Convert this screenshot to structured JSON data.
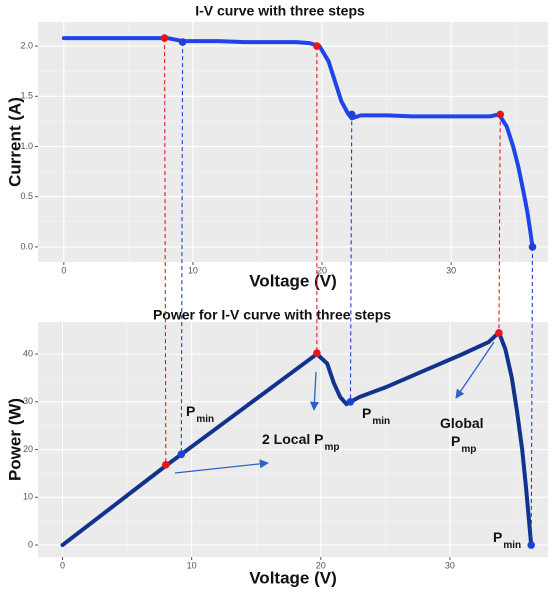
{
  "chart_data": [
    {
      "type": "line",
      "title": "I-V curve with three steps",
      "x_label": "Voltage (V)",
      "y_label": "Current (A)",
      "xlim": [
        -2.0,
        37.5
      ],
      "ylim": [
        -0.15,
        2.24
      ],
      "xticks": [
        0,
        10,
        20,
        30
      ],
      "yticks": [
        {
          "value": 0,
          "label": "0.0"
        },
        {
          "value": 0.5,
          "label": "0.5"
        },
        {
          "value": 1,
          "label": "1.0"
        },
        {
          "value": 1.5,
          "label": "1.5"
        },
        {
          "value": 2,
          "label": "2.0"
        }
      ],
      "grid": true,
      "series": [
        {
          "color": "#1f45e8",
          "x": [
            0,
            2,
            4,
            6,
            8,
            9.2,
            10,
            12,
            14,
            16,
            18,
            19,
            19.8,
            20.5,
            21,
            21.5,
            22,
            22.3,
            23,
            25,
            27,
            29,
            31,
            33,
            33.7,
            34.3,
            34.8,
            35.2,
            35.6,
            35.9,
            36.1,
            36.3
          ],
          "values": [
            2.08,
            2.08,
            2.08,
            2.08,
            2.08,
            2.05,
            2.05,
            2.05,
            2.04,
            2.04,
            2.04,
            2.03,
            2.0,
            1.85,
            1.65,
            1.45,
            1.33,
            1.28,
            1.31,
            1.31,
            1.3,
            1.3,
            1.3,
            1.3,
            1.32,
            1.2,
            1.0,
            0.8,
            0.55,
            0.35,
            0.18,
            0.0
          ]
        },
        {
          "type": "scatter",
          "x": [
            7.8,
            9.2,
            19.6,
            22.3,
            33.8,
            36.3
          ],
          "values": [
            2.08,
            2.04,
            2.0,
            1.32,
            1.32,
            0.0
          ],
          "colors": [
            "#e8141e",
            "#1f3fd6",
            "#e8141e",
            "#1f3fd6",
            "#e8141e",
            "#1f3fd6"
          ]
        }
      ]
    },
    {
      "type": "line",
      "title": "Power for I-V curve with three steps",
      "x_label": "Voltage (V)",
      "y_label": "Power (W)",
      "xlim": [
        -1.9,
        37.6
      ],
      "ylim": [
        -2.5,
        46.7
      ],
      "xticks": [
        0,
        10,
        20,
        30
      ],
      "yticks": [
        0,
        10,
        20,
        30,
        40
      ],
      "grid": true,
      "series": [
        {
          "color": "#10348c",
          "x": [
            0,
            4,
            8,
            9.2,
            12,
            16,
            19,
            19.7,
            20.5,
            21,
            21.5,
            22,
            22.3,
            23,
            25,
            28,
            31,
            33,
            33.8,
            34.3,
            34.8,
            35.2,
            35.6,
            35.9,
            36.1,
            36.3
          ],
          "values": [
            0,
            8.3,
            16.6,
            19,
            24.6,
            32.6,
            38.6,
            40,
            38,
            34,
            31,
            29.5,
            30,
            31,
            33,
            36.5,
            40,
            42.5,
            44.5,
            41,
            35,
            28,
            20,
            12,
            6,
            0
          ]
        },
        {
          "type": "scatter",
          "x": [
            8,
            9.2,
            19.7,
            22.3,
            33.8,
            36.3
          ],
          "values": [
            16.8,
            19,
            40.2,
            30,
            44.4,
            0
          ],
          "colors": [
            "#e8141e",
            "#1f3fd6",
            "#e8141e",
            "#1f3fd6",
            "#e8141e",
            "#1f3fd6"
          ]
        }
      ],
      "annotations": [
        {
          "text": "P",
          "sub": "min"
        },
        {
          "text": "2 Local P",
          "sub": "mp"
        },
        {
          "text": "P",
          "sub": "min"
        },
        {
          "text": "Global"
        },
        {
          "text": "P",
          "sub": "mp"
        },
        {
          "text": "P",
          "sub": "min"
        }
      ]
    }
  ]
}
